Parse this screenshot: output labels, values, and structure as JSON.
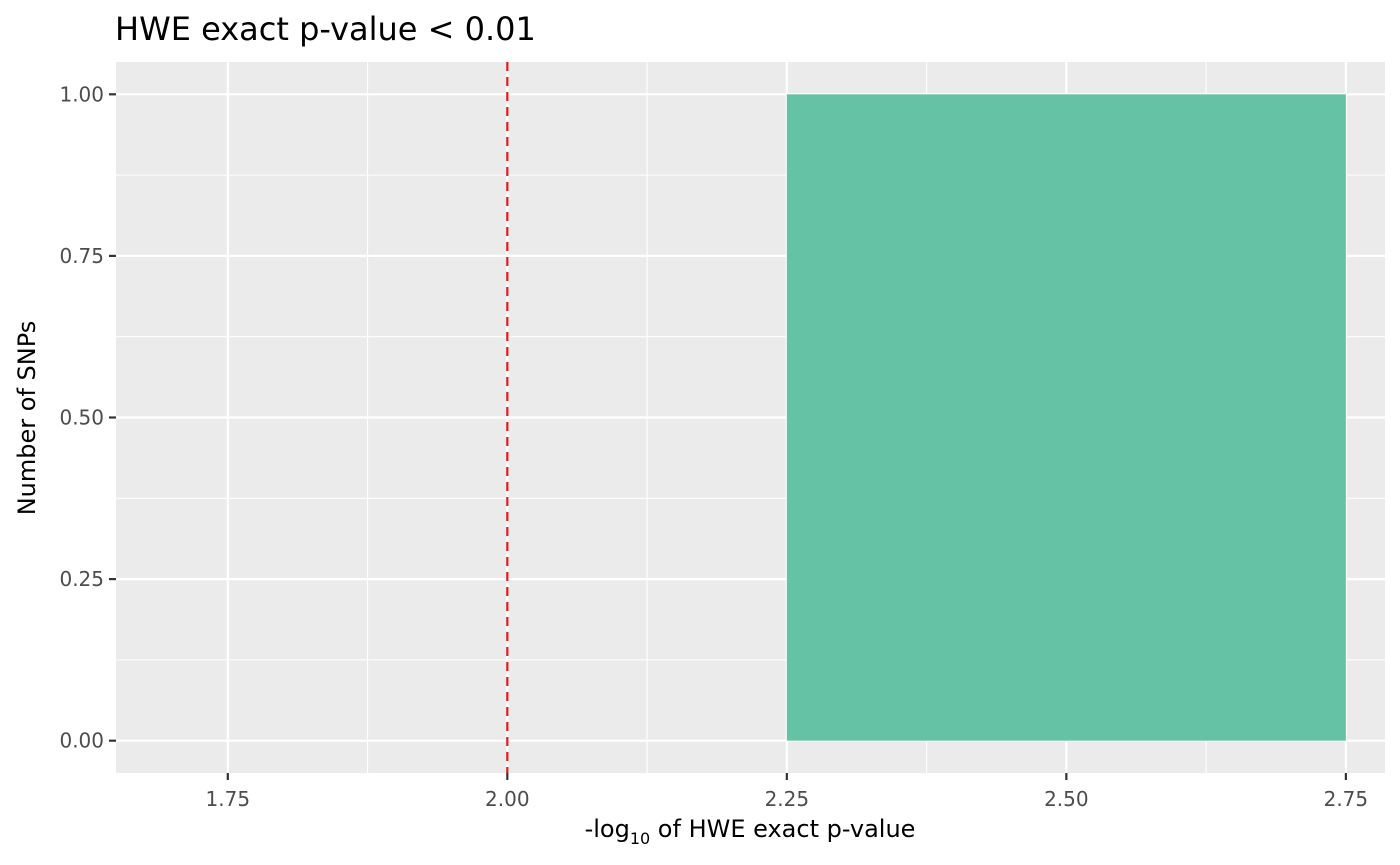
{
  "chart_data": {
    "type": "bar",
    "title": "HWE exact p-value < 0.01",
    "xlabel_prefix": "-log",
    "xlabel_subscript": "10",
    "xlabel_suffix": " of HWE exact p-value",
    "ylabel": "Number of SNPs",
    "xlim": [
      1.65,
      2.785
    ],
    "ylim": [
      -0.05,
      1.05
    ],
    "x_ticks": [
      1.75,
      2.0,
      2.25,
      2.5,
      2.75
    ],
    "x_tick_labels": [
      "1.75",
      "2.00",
      "2.25",
      "2.50",
      "2.75"
    ],
    "y_ticks": [
      0,
      0.25,
      0.5,
      0.75,
      1.0
    ],
    "y_tick_labels": [
      "0.00",
      "0.25",
      "0.50",
      "0.75",
      "1.00"
    ],
    "bars": [
      {
        "x_start": 2.25,
        "x_end": 2.75,
        "value": 1
      }
    ],
    "threshold_line": {
      "x": 2.0,
      "style": "dashed",
      "color": "#e41a1c"
    },
    "grid": true,
    "colors": {
      "panel_background": "#ebebeb",
      "grid": "#ffffff",
      "bar_fill": "#66c2a5"
    }
  }
}
